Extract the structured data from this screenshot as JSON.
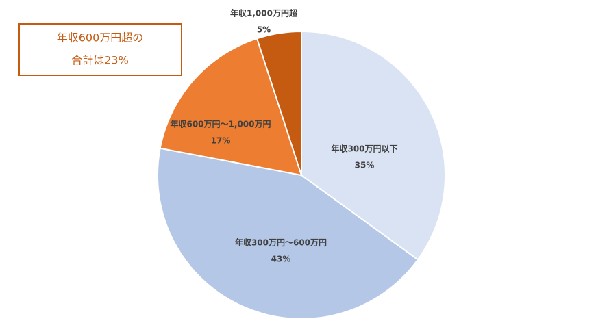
{
  "chart_data": {
    "type": "pie",
    "categories": [
      "年収300万円以下",
      "年収300万円～600万円",
      "年収600万円～1,000万円",
      "年収1,000万円超"
    ],
    "values": [
      35,
      43,
      17,
      5
    ],
    "value_labels": [
      "35%",
      "43%",
      "17%",
      "5%"
    ],
    "colors": [
      "#dae3f3",
      "#b4c7e7",
      "#ed7d31",
      "#c55a11"
    ],
    "annotation": [
      "年収600万円超の",
      "合計は23%"
    ]
  }
}
